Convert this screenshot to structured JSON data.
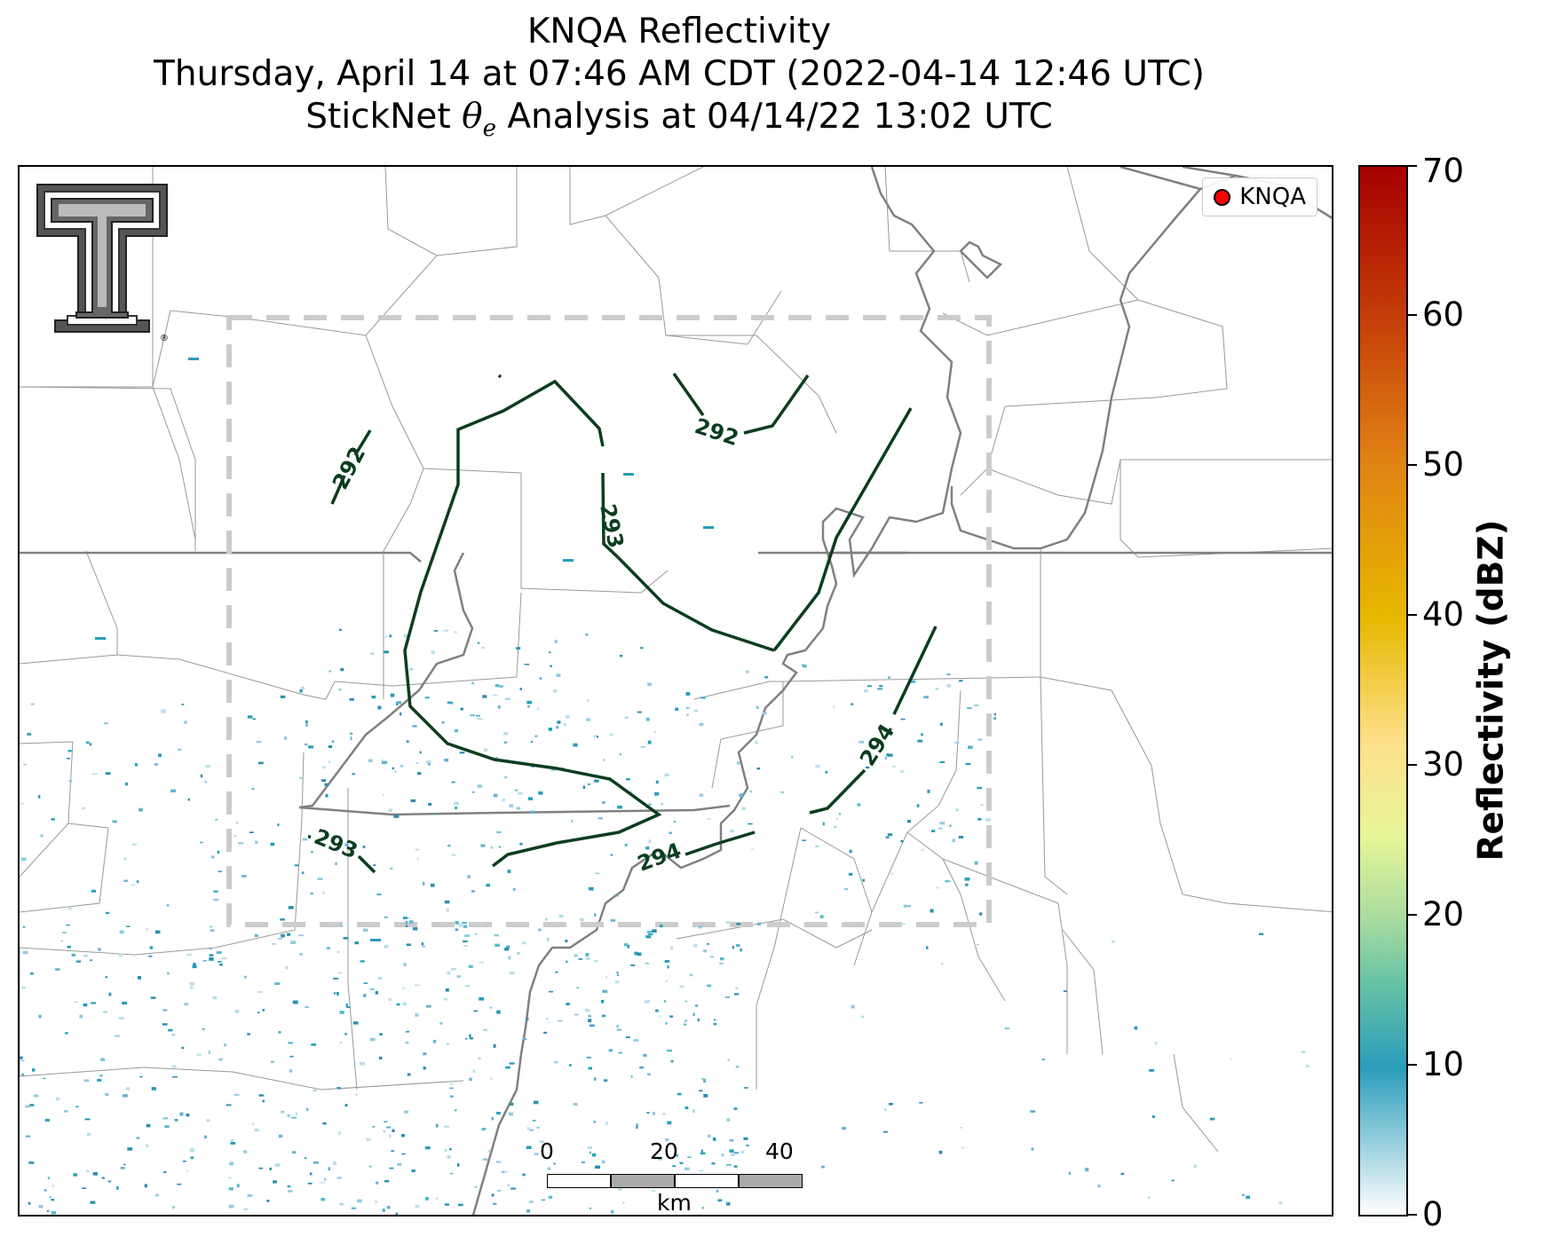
{
  "title": {
    "line1": "KNQA Reflectivity",
    "line2": "Thursday, April 14 at 07:46 AM CDT (2022-04-14 12:46 UTC)",
    "line3_prefix": "StickNet ",
    "line3_symbol": "θ",
    "line3_subscript": "e",
    "line3_suffix": " Analysis at 04/14/22 13:02 UTC"
  },
  "legend": {
    "marker_label": "KNQA",
    "marker_color": "#ff0000"
  },
  "logo": {
    "icon": "double-t-logo-icon",
    "mark": "®"
  },
  "contours": {
    "color": "#0b3d1e",
    "labels": [
      "292",
      "292",
      "293",
      "293",
      "294",
      "294"
    ]
  },
  "scalebar": {
    "ticks": [
      "0",
      "20",
      "40"
    ],
    "unit": "km"
  },
  "colorbar": {
    "title": "Reflectivity (dBZ)",
    "ticks": [
      "0",
      "10",
      "20",
      "30",
      "40",
      "50",
      "60",
      "70"
    ]
  },
  "colors": {
    "state_border": "#808080",
    "county_border": "#999999",
    "river": "#808080",
    "analysis_box": "#cccccc",
    "echo": "#2a9dbb"
  }
}
